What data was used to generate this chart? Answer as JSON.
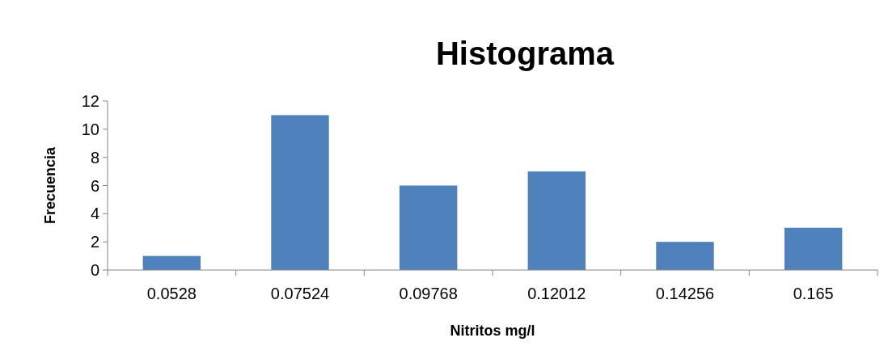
{
  "chart_data": {
    "type": "bar",
    "title": "Histograma",
    "xlabel": "Nitritos mg/l",
    "ylabel": "Frecuencia",
    "categories": [
      "0.0528",
      "0.07524",
      "0.09768",
      "0.12012",
      "0.14256",
      "0.165"
    ],
    "values": [
      1,
      11,
      6,
      7,
      2,
      3
    ],
    "color": "#4f81bd",
    "ylim": [
      0,
      12
    ],
    "yticks": [
      0,
      2,
      4,
      6,
      8,
      10,
      12
    ],
    "grid": false
  }
}
